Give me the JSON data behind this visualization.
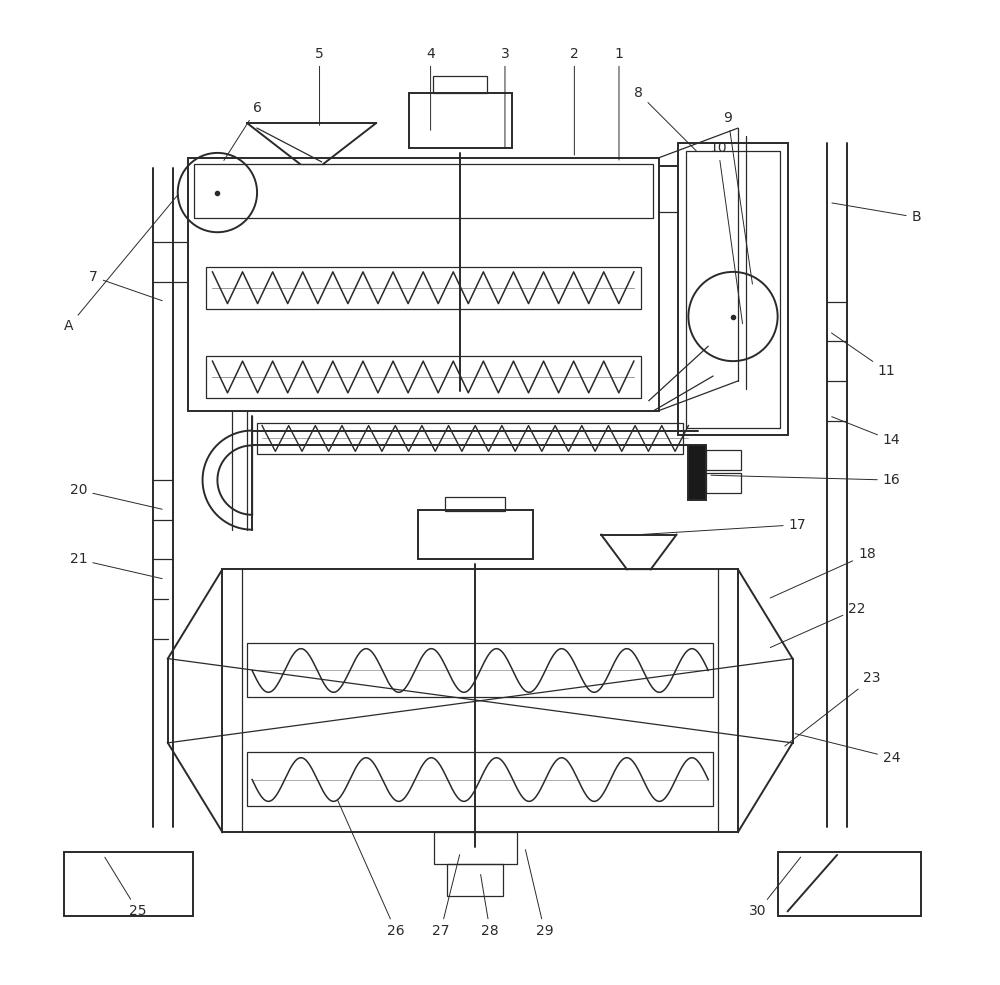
{
  "bg_color": "#ffffff",
  "line_color": "#2a2a2a",
  "lw_main": 1.4,
  "lw_thin": 0.9,
  "label_fs": 10,
  "fig_w": 10.0,
  "fig_h": 9.85
}
